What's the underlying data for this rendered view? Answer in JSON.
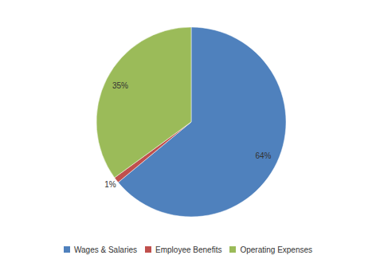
{
  "chart_data": {
    "type": "pie",
    "categories": [
      "Wages & Salaries",
      "Employee Benefits",
      "Operating Expenses"
    ],
    "values": [
      64,
      1,
      35
    ],
    "value_labels": [
      "64%",
      "1%",
      "35%"
    ],
    "colors": [
      "#4f81bd",
      "#c0504d",
      "#9bbb59"
    ],
    "data_labels": true,
    "legend": "bottom"
  }
}
